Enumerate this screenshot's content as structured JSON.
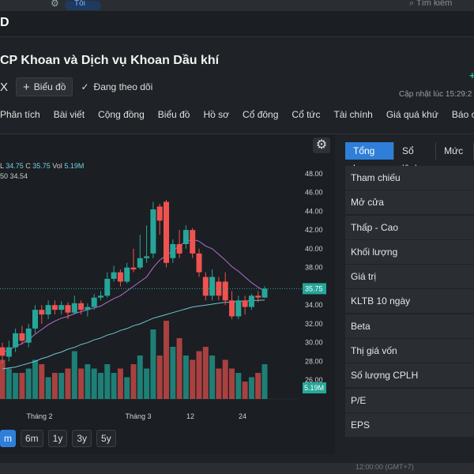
{
  "topbar": {
    "lang_label": "Tối",
    "search_placeholder": "Tìm kiếm"
  },
  "brand_letter": "D",
  "company": {
    "title": "CP Khoan và Dịch vụ Khoan Dầu khí",
    "ticker": "X"
  },
  "actions": {
    "chart_button": "Biểu đồ",
    "follow_label": "Đang theo dõi"
  },
  "updated": "Cập nhật lúc   15:29:2",
  "nav_tabs": [
    "Phân tích",
    "Bài viết",
    "Cộng đồng",
    "Biểu đồ",
    "Hồ sơ",
    "Cổ đông",
    "Cổ tức",
    "Tài chính",
    "Giá quá khứ",
    "Báo các"
  ],
  "chart_legend": {
    "l_label": "L",
    "l_value": "34.75",
    "c_label": "C",
    "c_value": "35.75",
    "vol_label": "Vol",
    "vol_value": "5.19M",
    "ma_label": "50",
    "ma_value": "34.54"
  },
  "range_buttons": [
    "m",
    "6m",
    "1y",
    "3y",
    "5y"
  ],
  "right_tabs": [
    "Tổng hợp",
    "Sổ lệnh",
    "Mức g"
  ],
  "stats_rows": [
    "Tham chiếu",
    "Mở cửa",
    "Thấp - Cao",
    "Khối lượng",
    "Giá trị",
    "KLTB 10 ngày",
    "Beta",
    "Thị giá vốn",
    "Số lượng CPLH",
    "P/E",
    "EPS"
  ],
  "bottom_text": "12:00:00 (GMT+7)",
  "colors": {
    "accent": "#2f7fd8",
    "up": "#26a69a",
    "down": "#ef5350",
    "ma_short": "#b56fd6",
    "ma_long": "#6fc6d6"
  },
  "chart_data": {
    "type": "candlestick",
    "x_ticks": [
      "Tháng 2",
      "Tháng 3",
      "12",
      "24"
    ],
    "y_ticks": [
      26.0,
      28.0,
      30.0,
      32.0,
      34.0,
      36.0,
      38.0,
      40.0,
      42.0,
      44.0,
      46.0,
      48.0
    ],
    "ylim": [
      24.0,
      49.0
    ],
    "last_price": "35.75",
    "last_volume": "5.19M",
    "candles": [
      {
        "o": 29.5,
        "c": 28.6,
        "h": 30.0,
        "l": 27.8
      },
      {
        "o": 28.5,
        "c": 29.5,
        "h": 30.2,
        "l": 28.0
      },
      {
        "o": 29.5,
        "c": 31.0,
        "h": 31.5,
        "l": 29.0
      },
      {
        "o": 31.0,
        "c": 30.2,
        "h": 31.8,
        "l": 29.8
      },
      {
        "o": 30.0,
        "c": 31.5,
        "h": 32.0,
        "l": 29.5
      },
      {
        "o": 31.5,
        "c": 33.5,
        "h": 34.0,
        "l": 31.0
      },
      {
        "o": 33.5,
        "c": 33.0,
        "h": 34.0,
        "l": 32.0
      },
      {
        "o": 33.0,
        "c": 34.0,
        "h": 34.5,
        "l": 32.5
      },
      {
        "o": 34.0,
        "c": 33.5,
        "h": 34.5,
        "l": 33.0
      },
      {
        "o": 33.5,
        "c": 34.0,
        "h": 34.4,
        "l": 33.0
      },
      {
        "o": 34.0,
        "c": 33.2,
        "h": 34.3,
        "l": 32.5
      },
      {
        "o": 33.2,
        "c": 34.2,
        "h": 35.0,
        "l": 33.0
      },
      {
        "o": 34.2,
        "c": 33.5,
        "h": 34.5,
        "l": 33.0
      },
      {
        "o": 33.5,
        "c": 33.8,
        "h": 34.2,
        "l": 32.8
      },
      {
        "o": 33.8,
        "c": 34.8,
        "h": 35.2,
        "l": 33.5
      },
      {
        "o": 34.8,
        "c": 35.0,
        "h": 35.5,
        "l": 34.5
      },
      {
        "o": 35.0,
        "c": 36.8,
        "h": 37.5,
        "l": 34.8
      },
      {
        "o": 36.8,
        "c": 37.5,
        "h": 38.2,
        "l": 36.5
      },
      {
        "o": 37.5,
        "c": 36.5,
        "h": 37.8,
        "l": 36.0
      },
      {
        "o": 36.5,
        "c": 38.0,
        "h": 38.5,
        "l": 36.3
      },
      {
        "o": 38.0,
        "c": 37.8,
        "h": 40.0,
        "l": 37.5
      },
      {
        "o": 38.0,
        "c": 39.0,
        "h": 41.5,
        "l": 37.8
      },
      {
        "o": 39.0,
        "c": 39.2,
        "h": 42.5,
        "l": 38.5
      },
      {
        "o": 39.5,
        "c": 44.2,
        "h": 45.0,
        "l": 39.0
      },
      {
        "o": 44.5,
        "c": 43.0,
        "h": 44.8,
        "l": 41.5
      },
      {
        "o": 45.0,
        "c": 38.5,
        "h": 45.2,
        "l": 38.0
      },
      {
        "o": 39.0,
        "c": 40.5,
        "h": 41.0,
        "l": 38.5
      },
      {
        "o": 40.5,
        "c": 39.5,
        "h": 42.0,
        "l": 39.0
      },
      {
        "o": 40.5,
        "c": 42.0,
        "h": 42.5,
        "l": 40.0
      },
      {
        "o": 42.0,
        "c": 39.5,
        "h": 42.2,
        "l": 39.0
      },
      {
        "o": 39.5,
        "c": 37.5,
        "h": 40.0,
        "l": 37.0
      },
      {
        "o": 37.0,
        "c": 35.0,
        "h": 37.5,
        "l": 34.5
      },
      {
        "o": 35.0,
        "c": 37.0,
        "h": 37.8,
        "l": 34.5
      },
      {
        "o": 36.5,
        "c": 35.0,
        "h": 37.0,
        "l": 34.5
      },
      {
        "o": 36.5,
        "c": 34.5,
        "h": 37.5,
        "l": 34.0
      },
      {
        "o": 34.5,
        "c": 32.8,
        "h": 35.5,
        "l": 32.5
      },
      {
        "o": 32.8,
        "c": 34.5,
        "h": 35.0,
        "l": 32.5
      },
      {
        "o": 34.5,
        "c": 33.8,
        "h": 35.0,
        "l": 33.0
      },
      {
        "o": 33.8,
        "c": 35.0,
        "h": 35.2,
        "l": 33.5
      },
      {
        "o": 35.0,
        "c": 34.8,
        "h": 35.5,
        "l": 34.3
      },
      {
        "o": 34.8,
        "c": 35.75,
        "h": 36.0,
        "l": 34.75
      }
    ],
    "volumes": [
      0.45,
      0.35,
      0.3,
      0.3,
      0.35,
      0.45,
      0.4,
      0.25,
      0.3,
      0.3,
      0.35,
      0.55,
      0.35,
      0.4,
      0.35,
      0.3,
      0.4,
      0.3,
      0.35,
      0.25,
      0.4,
      0.5,
      0.35,
      0.8,
      0.5,
      0.9,
      0.6,
      0.7,
      0.5,
      0.45,
      0.55,
      0.6,
      0.5,
      0.35,
      0.45,
      0.35,
      0.3,
      0.2,
      0.25,
      0.3,
      0.4
    ],
    "ma_short": [
      29.0,
      29.2,
      29.6,
      29.9,
      30.3,
      30.9,
      31.4,
      31.9,
      32.3,
      32.6,
      32.8,
      33.1,
      33.3,
      33.5,
      33.7,
      33.9,
      34.3,
      34.7,
      35.0,
      35.5,
      36.0,
      36.5,
      37.0,
      38.0,
      38.8,
      39.3,
      39.8,
      40.3,
      40.8,
      41.0,
      40.8,
      40.3,
      40.0,
      39.4,
      38.8,
      38.1,
      37.6,
      37.0,
      36.4,
      35.9,
      35.5
    ],
    "ma_long": [
      27.2,
      27.3,
      27.4,
      27.6,
      27.8,
      28.0,
      28.3,
      28.5,
      28.8,
      29.0,
      29.3,
      29.5,
      29.8,
      30.0,
      30.3,
      30.5,
      30.8,
      31.0,
      31.3,
      31.5,
      31.8,
      32.0,
      32.3,
      32.6,
      32.8,
      33.0,
      33.2,
      33.4,
      33.6,
      33.8,
      33.9,
      34.0,
      34.1,
      34.2,
      34.3,
      34.3,
      34.4,
      34.4,
      34.5,
      34.5,
      34.54
    ]
  }
}
